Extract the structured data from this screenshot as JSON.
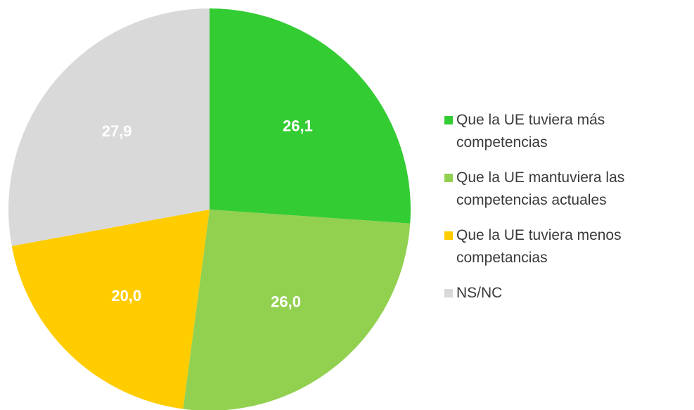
{
  "chart_data": {
    "type": "pie",
    "categories": [
      "Que la UE tuviera más competencias",
      "Que la UE mantuviera las competencias actuales",
      "Que la UE tuviera menos competancias",
      "NS/NC"
    ],
    "values": [
      26.1,
      26.0,
      20.0,
      27.9
    ],
    "value_labels": [
      "26,1",
      "26,0",
      "20,0",
      "27,9"
    ],
    "colors": [
      "#33cc33",
      "#92d050",
      "#ffcc00",
      "#d9d9d9"
    ],
    "legend": "right"
  }
}
